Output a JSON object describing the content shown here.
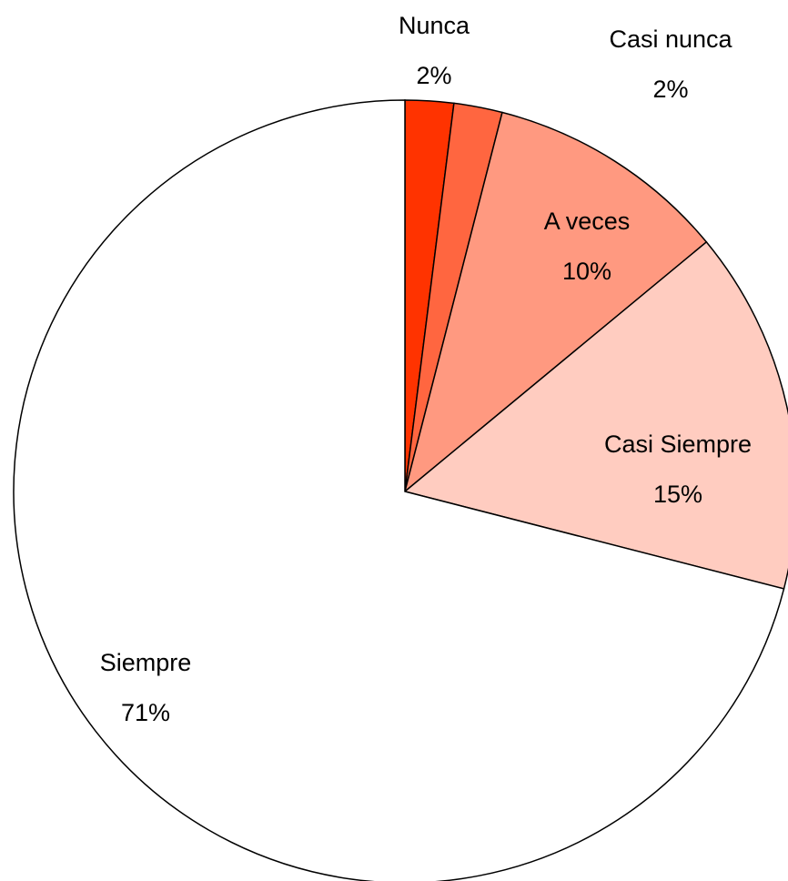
{
  "chart_data": {
    "type": "pie",
    "categories": [
      "Nunca",
      "Casi nunca",
      "A veces",
      "Casi Siempre",
      "Siempre"
    ],
    "values": [
      2,
      2,
      10,
      15,
      71
    ],
    "value_labels": [
      "2%",
      "2%",
      "10%",
      "15%",
      "71%"
    ],
    "colors": [
      "#ff3300",
      "#ff6640",
      "#ff9980",
      "#ffccc0",
      "#ffffff"
    ]
  }
}
